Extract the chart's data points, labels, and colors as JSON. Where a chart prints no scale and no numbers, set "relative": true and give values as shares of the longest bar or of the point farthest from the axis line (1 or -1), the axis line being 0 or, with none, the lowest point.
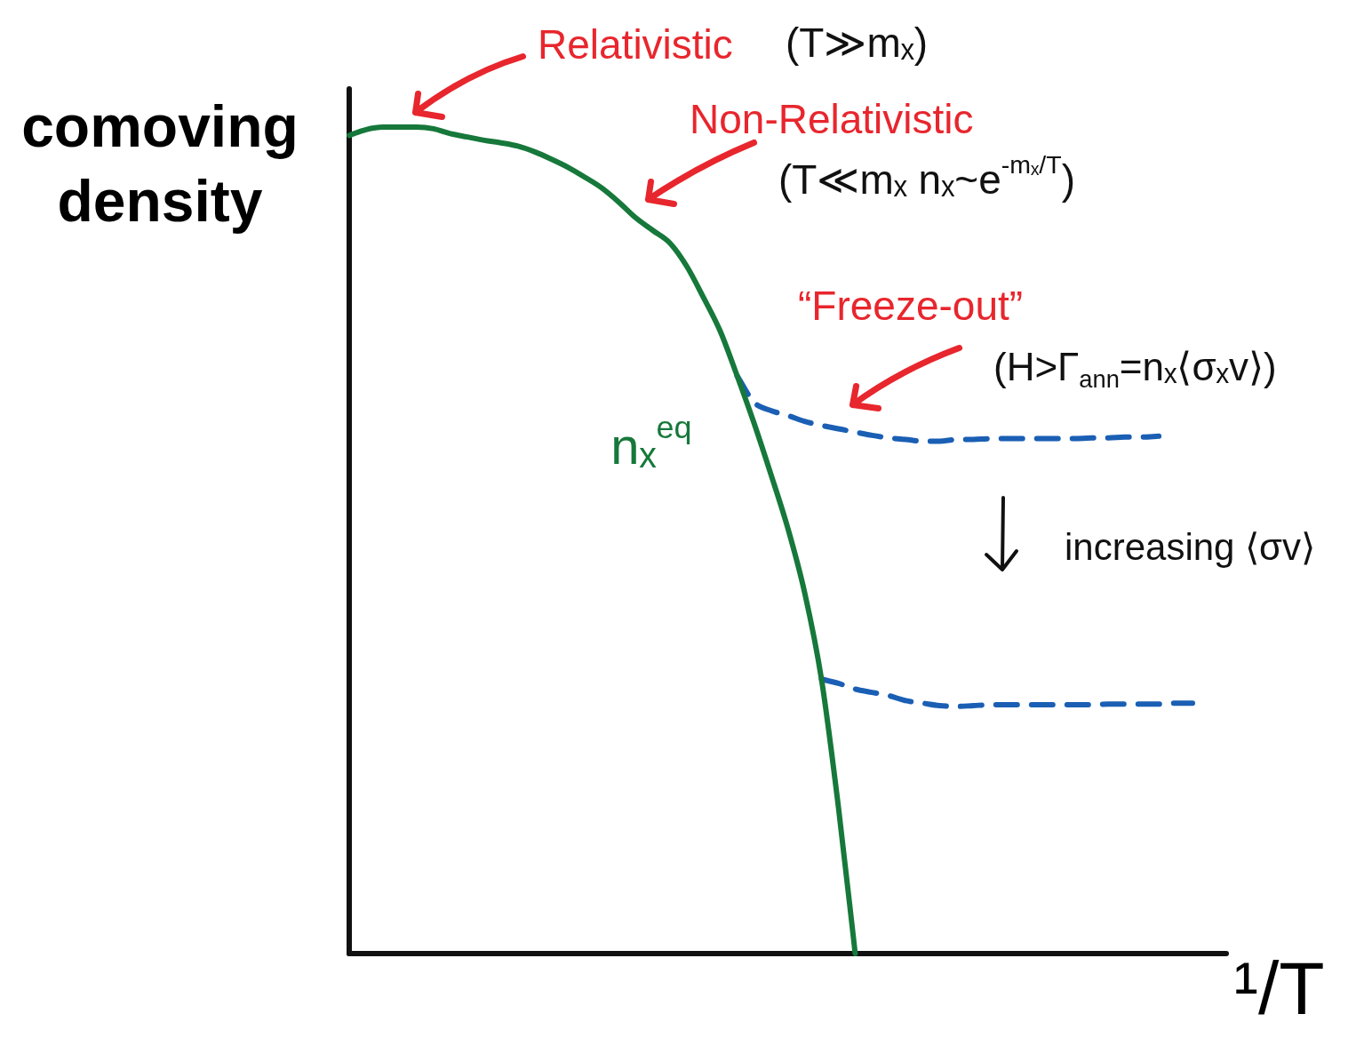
{
  "chart_data": {
    "type": "line",
    "relative": true,
    "ylabel": "comoving density",
    "xlabel": "¹/T",
    "marker": "none",
    "categories": [
      null,
      null,
      null,
      null,
      null,
      null,
      null,
      null,
      null,
      null,
      null,
      null,
      null,
      null,
      null,
      null,
      null,
      null,
      null,
      null,
      null,
      null,
      null,
      null,
      null,
      null,
      null,
      null,
      null,
      null,
      null,
      null,
      null,
      null,
      null,
      null,
      null,
      null,
      null,
      null,
      null,
      null,
      null,
      null,
      null,
      null,
      null,
      null,
      null,
      null,
      null,
      null,
      null
    ],
    "series": [
      {
        "name": "nₓ$^{eq}$",
        "color": "#16783a",
        "values": [
          0.99,
          0.997,
          1.0,
          1.0,
          1.0,
          0.998,
          0.992,
          0.988,
          0.984,
          0.981,
          0.977,
          0.97,
          0.961,
          0.951,
          0.939,
          0.926,
          0.909,
          0.89,
          0.875,
          0.86,
          0.832,
          0.794,
          0.753,
          0.699,
          0.642,
          0.58,
          0.515,
          0.437,
          0.332,
          0.178,
          0,
          null,
          null,
          null,
          null,
          null,
          null,
          null,
          null,
          null,
          null,
          null,
          null,
          null,
          null,
          null,
          null,
          null,
          null,
          null,
          null,
          null,
          null
        ]
      },
      {
        "color": "#1a5fb4",
        "line_style": "dashed",
        "values": [
          null,
          null,
          null,
          null,
          null,
          null,
          null,
          null,
          null,
          null,
          null,
          null,
          null,
          null,
          null,
          null,
          null,
          null,
          null,
          null,
          null,
          null,
          null,
          0.699,
          0.667,
          0.657,
          0.651,
          0.644,
          0.639,
          0.635,
          0.631,
          0.627,
          0.624,
          0.622,
          0.62,
          0.62,
          0.622,
          0.622,
          0.623,
          0.623,
          0.623,
          0.623,
          0.623,
          0.623,
          0.624,
          0.624,
          0.625,
          0.625,
          0.626,
          null,
          null,
          null,
          null
        ]
      },
      {
        "color": "#1a5fb4",
        "line_style": "dashed",
        "values": [
          null,
          null,
          null,
          null,
          null,
          null,
          null,
          null,
          null,
          null,
          null,
          null,
          null,
          null,
          null,
          null,
          null,
          null,
          null,
          null,
          null,
          null,
          null,
          null,
          null,
          null,
          null,
          null,
          0.332,
          0.327,
          0.32,
          0.316,
          0.312,
          0.306,
          0.303,
          0.3,
          0.299,
          0.3,
          0.301,
          0.301,
          0.301,
          0.301,
          0.301,
          0.301,
          0.301,
          0.302,
          0.302,
          0.302,
          0.302,
          0.303,
          0.303,
          null,
          null
        ]
      }
    ],
    "annotations": [
      "Relativistic",
      "(T≫mₓ)",
      "Non-Relativistic",
      "(T≪mₓ  nₓ~e$^{-mₓ/T}$)",
      "“Freeze-out”",
      "(H>Γ$_{ann}$=nₓ⟨σₓv⟩)",
      "increasing ⟨σv⟩"
    ]
  }
}
